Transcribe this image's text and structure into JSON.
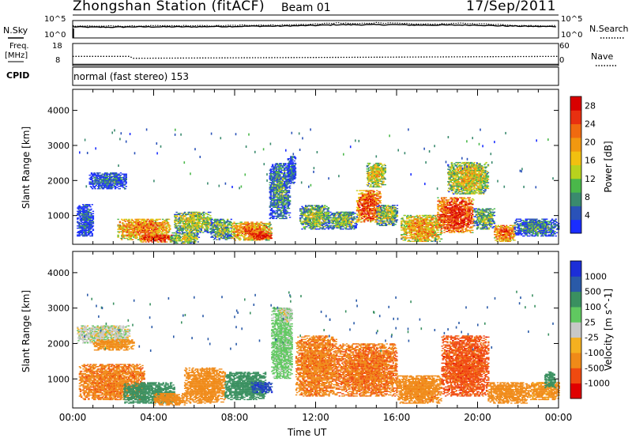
{
  "header": {
    "title": "Zhongshan Station (fitACF)",
    "beam": "Beam 01",
    "date": "17/Sep/2011",
    "cpid_label": "CPID",
    "cpid_text": "normal (fast stereo) 153"
  },
  "colors": {
    "power": [
      "#1a2dff",
      "#2a52b8",
      "#3a8a6e",
      "#4ab84a",
      "#b8d21e",
      "#f2c010",
      "#f29810",
      "#f06a10",
      "#e83010",
      "#d80000"
    ],
    "velocity": [
      "#e00000",
      "#f04a10",
      "#f08a18",
      "#f5b020",
      "#c8c8c8",
      "#60c860",
      "#3a9060",
      "#2a5aa8",
      "#1c2ed8"
    ]
  },
  "chart_data": [
    {
      "type": "line",
      "name": "noise-panel",
      "left_label": "N.Sky",
      "right_label": "N.Search",
      "left_ticks": [
        "10^5",
        "10^0"
      ],
      "right_ticks": [
        "10^5",
        "10^0"
      ],
      "series": [
        {
          "name": "N.Sky",
          "style": "solid",
          "x": [
            0,
            1,
            2,
            3,
            4,
            5,
            6,
            7,
            8,
            9,
            10,
            11,
            12,
            13,
            14,
            15,
            16,
            17,
            18,
            19,
            20,
            21,
            22,
            23,
            24
          ],
          "values": [
            3.2,
            3.1,
            3.1,
            3.2,
            3.2,
            3.2,
            3.2,
            3.3,
            3.3,
            3.4,
            3.4,
            3.5,
            3.6,
            3.8,
            3.8,
            3.8,
            3.8,
            3.7,
            3.7,
            3.7,
            3.7,
            3.5,
            3.4,
            3.3,
            3.3
          ]
        },
        {
          "name": "N.Search",
          "style": "dotted",
          "x": [
            0,
            1,
            2,
            3,
            4,
            5,
            6,
            7,
            8,
            9,
            10,
            11,
            12,
            13,
            14,
            15,
            16,
            17,
            18,
            19,
            20,
            21,
            22,
            23,
            24
          ],
          "values": [
            3.5,
            3.4,
            3.4,
            3.4,
            3.5,
            3.5,
            3.5,
            3.5,
            3.6,
            3.7,
            3.7,
            3.8,
            4.0,
            4.3,
            4.1,
            4.4,
            4.2,
            4.0,
            4.0,
            4.2,
            4.1,
            3.9,
            3.6,
            3.5,
            3.5
          ]
        }
      ]
    },
    {
      "type": "line",
      "name": "frequency-panel",
      "left_label": "Freq.",
      "left_units": "[MHz]",
      "right_label": "Nave",
      "left_ticks": [
        "18",
        "8"
      ],
      "right_ticks": [
        "60",
        "0"
      ],
      "series": [
        {
          "name": "Freq.",
          "style": "solid",
          "x": [
            0,
            24
          ],
          "values": [
            8.6,
            8.6
          ]
        },
        {
          "name": "Nave",
          "style": "dotted",
          "x": [
            0,
            2.8,
            3.0,
            24
          ],
          "values": [
            25,
            25,
            20,
            25
          ]
        }
      ]
    },
    {
      "type": "heatmap",
      "name": "power-panel",
      "ylabel": "Slant Range [km]",
      "colorbar_label": "Power [dB]",
      "colorbar_ticks": [
        "28",
        "24",
        "20",
        "16",
        "12",
        "8",
        "4"
      ],
      "colorbar_range": [
        0,
        30
      ],
      "ylim": [
        180,
        4600
      ],
      "yticks": [
        1000,
        2000,
        3000,
        4000
      ],
      "xlim": [
        0,
        24
      ],
      "blobs": [
        {
          "t": [
            2.2,
            4.8
          ],
          "r": [
            300,
            900
          ],
          "p": 22
        },
        {
          "t": [
            3.3,
            4.9
          ],
          "r": [
            230,
            450
          ],
          "p": 27
        },
        {
          "t": [
            4.8,
            6.2
          ],
          "r": [
            200,
            500
          ],
          "p": 14
        },
        {
          "t": [
            5.0,
            6.8
          ],
          "r": [
            500,
            1100
          ],
          "p": 15
        },
        {
          "t": [
            6.8,
            7.8
          ],
          "r": [
            300,
            900
          ],
          "p": 12
        },
        {
          "t": [
            7.8,
            9.8
          ],
          "r": [
            280,
            800
          ],
          "p": 22
        },
        {
          "t": [
            8.6,
            9.8
          ],
          "r": [
            300,
            500
          ],
          "p": 28
        },
        {
          "t": [
            9.7,
            10.7
          ],
          "r": [
            900,
            2500
          ],
          "p": 9
        },
        {
          "t": [
            10.6,
            11.0
          ],
          "r": [
            1900,
            2700
          ],
          "p": 6
        },
        {
          "t": [
            0.8,
            2.6
          ],
          "r": [
            1750,
            2200
          ],
          "p": 6
        },
        {
          "t": [
            0.2,
            1.0
          ],
          "r": [
            400,
            1300
          ],
          "p": 5
        },
        {
          "t": [
            11.2,
            12.6
          ],
          "r": [
            600,
            1300
          ],
          "p": 13
        },
        {
          "t": [
            12.6,
            14.0
          ],
          "r": [
            600,
            1100
          ],
          "p": 12
        },
        {
          "t": [
            14.0,
            15.2
          ],
          "r": [
            800,
            1700
          ],
          "p": 25
        },
        {
          "t": [
            15.0,
            16.0
          ],
          "r": [
            700,
            1300
          ],
          "p": 14
        },
        {
          "t": [
            14.5,
            15.4
          ],
          "r": [
            1800,
            2500
          ],
          "p": 17
        },
        {
          "t": [
            16.2,
            18.2
          ],
          "r": [
            250,
            1000
          ],
          "p": 20
        },
        {
          "t": [
            18.0,
            19.8
          ],
          "r": [
            500,
            1500
          ],
          "p": 27
        },
        {
          "t": [
            18.5,
            20.5
          ],
          "r": [
            1600,
            2500
          ],
          "p": 17
        },
        {
          "t": [
            19.8,
            20.8
          ],
          "r": [
            600,
            1200
          ],
          "p": 12
        },
        {
          "t": [
            20.8,
            21.8
          ],
          "r": [
            250,
            700
          ],
          "p": 24
        },
        {
          "t": [
            21.8,
            24.0
          ],
          "r": [
            400,
            900
          ],
          "p": 8
        }
      ]
    },
    {
      "type": "heatmap",
      "name": "velocity-panel",
      "ylabel": "Slant Range [km]",
      "xlabel": "Time UT",
      "colorbar_label": "Velocity [m s^-1]",
      "colorbar_ticks": [
        "1000",
        "500",
        "100",
        "25",
        "-25",
        "-100",
        "-500",
        "-1000"
      ],
      "ylim": [
        180,
        4600
      ],
      "yticks": [
        1000,
        2000,
        3000,
        4000
      ],
      "xlim": [
        0,
        24
      ],
      "xticks": [
        "00:00",
        "04:00",
        "08:00",
        "12:00",
        "16:00",
        "20:00",
        "00:00"
      ],
      "blobs": [
        {
          "t": [
            0.2,
            2.8
          ],
          "r": [
            2000,
            2500
          ],
          "v": 0
        },
        {
          "t": [
            1.0,
            3.0
          ],
          "r": [
            1800,
            2100
          ],
          "v": -150
        },
        {
          "t": [
            0.3,
            3.5
          ],
          "r": [
            400,
            1400
          ],
          "v": -400
        },
        {
          "t": [
            2.5,
            5.0
          ],
          "r": [
            300,
            900
          ],
          "v": 300
        },
        {
          "t": [
            4.0,
            5.5
          ],
          "r": [
            250,
            600
          ],
          "v": -300
        },
        {
          "t": [
            5.5,
            7.5
          ],
          "r": [
            300,
            1300
          ],
          "v": -200
        },
        {
          "t": [
            7.5,
            9.5
          ],
          "r": [
            400,
            1200
          ],
          "v": 250
        },
        {
          "t": [
            8.8,
            9.8
          ],
          "r": [
            600,
            900
          ],
          "v": 900
        },
        {
          "t": [
            9.8,
            10.8
          ],
          "r": [
            1000,
            3000
          ],
          "v": 50
        },
        {
          "t": [
            10.2,
            10.8
          ],
          "r": [
            2600,
            3000
          ],
          "v": 0
        },
        {
          "t": [
            11.0,
            13.0
          ],
          "r": [
            500,
            2200
          ],
          "v": -400
        },
        {
          "t": [
            13.0,
            16.0
          ],
          "r": [
            500,
            2000
          ],
          "v": -450
        },
        {
          "t": [
            16.0,
            18.2
          ],
          "r": [
            300,
            1100
          ],
          "v": -350
        },
        {
          "t": [
            18.2,
            20.5
          ],
          "r": [
            500,
            2200
          ],
          "v": -700
        },
        {
          "t": [
            20.5,
            22.5
          ],
          "r": [
            300,
            900
          ],
          "v": -200
        },
        {
          "t": [
            22.5,
            24.0
          ],
          "r": [
            400,
            900
          ],
          "v": -150
        },
        {
          "t": [
            23.3,
            23.8
          ],
          "r": [
            700,
            1200
          ],
          "v": 200
        }
      ]
    }
  ]
}
